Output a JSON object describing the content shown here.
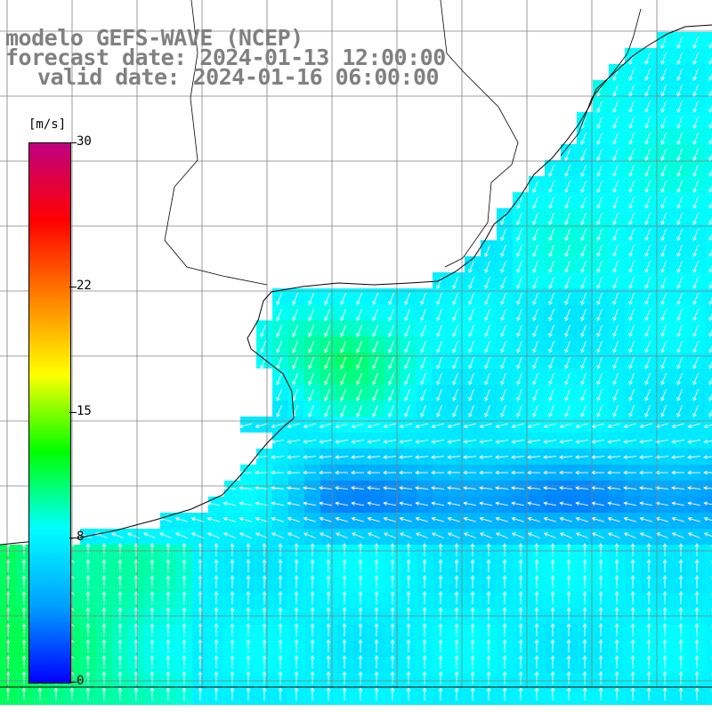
{
  "title": {
    "line1": "modelo GEFS-WAVE (NCEP)",
    "line2": "forecast date: 2024-01-13 12:00:00",
    "line3": "valid date: 2024-01-16 06:00:00"
  },
  "colorbar": {
    "units": "[m/s]",
    "ticks": [
      "30",
      "22",
      "15",
      "8",
      "0"
    ],
    "tick_values": [
      30,
      22,
      15,
      8,
      0
    ],
    "range": [
      0,
      30
    ],
    "stops": [
      "#0000ff",
      "#00a0ff",
      "#00ffff",
      "#00ff00",
      "#ffff00",
      "#ff8000",
      "#ff0000",
      "#c00080"
    ]
  },
  "map": {
    "land_color": "#ffffff",
    "grid_color": "#808080",
    "coast_color": "#000000",
    "arrow_color": "#ffffff"
  }
}
